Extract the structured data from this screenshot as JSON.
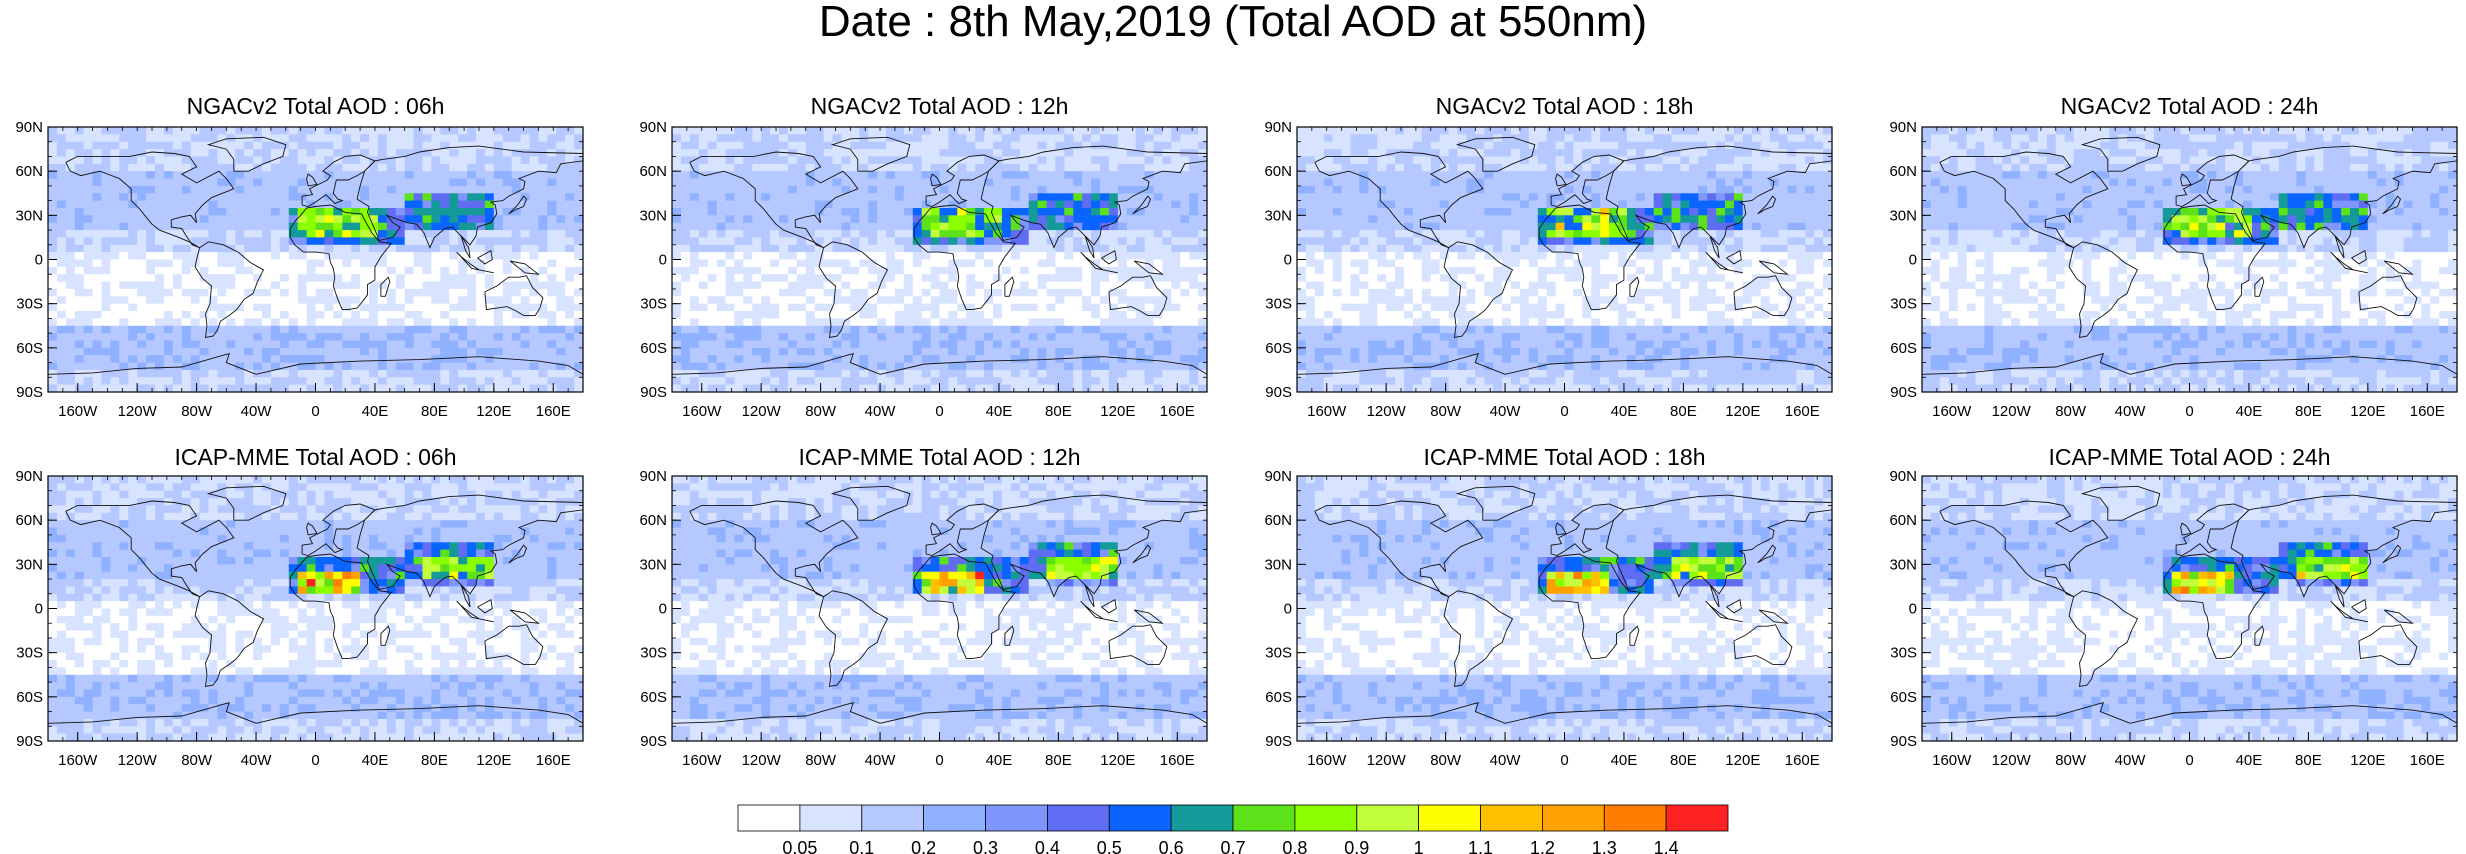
{
  "title": "Date : 8th May,2019 (Total AOD at 550nm)",
  "panels": [
    {
      "title": "NGACv2 Total AOD : 06h",
      "model": "NGACv2",
      "hour": "06h"
    },
    {
      "title": "NGACv2 Total AOD : 12h",
      "model": "NGACv2",
      "hour": "12h"
    },
    {
      "title": "NGACv2 Total AOD : 18h",
      "model": "NGACv2",
      "hour": "18h"
    },
    {
      "title": "NGACv2 Total AOD : 24h",
      "model": "NGACv2",
      "hour": "24h"
    },
    {
      "title": "ICAP-MME Total AOD : 06h",
      "model": "ICAP-MME",
      "hour": "06h"
    },
    {
      "title": "ICAP-MME Total AOD : 12h",
      "model": "ICAP-MME",
      "hour": "12h"
    },
    {
      "title": "ICAP-MME Total AOD : 18h",
      "model": "ICAP-MME",
      "hour": "18h"
    },
    {
      "title": "ICAP-MME Total AOD : 24h",
      "model": "ICAP-MME",
      "hour": "24h"
    }
  ],
  "lat_ticks": [
    "90N",
    "60N",
    "30N",
    "0",
    "30S",
    "60S",
    "90S"
  ],
  "lon_ticks": [
    "160W",
    "120W",
    "80W",
    "40W",
    "0",
    "40E",
    "80E",
    "120E",
    "160E"
  ],
  "colorbar": {
    "labels": [
      "0.05",
      "0.1",
      "0.2",
      "0.3",
      "0.4",
      "0.5",
      "0.6",
      "0.7",
      "0.8",
      "0.9",
      "1",
      "1.1",
      "1.2",
      "1.3",
      "1.4"
    ],
    "colors": [
      "#ffffff",
      "#d7e3ff",
      "#b5c8ff",
      "#8fb1ff",
      "#7f96ff",
      "#5f6df3",
      "#0a64ff",
      "#139a99",
      "#5de119",
      "#8bff00",
      "#c1ff3c",
      "#ffff00",
      "#ffc000",
      "#ffa100",
      "#ff7e00",
      "#ff2222"
    ]
  }
}
